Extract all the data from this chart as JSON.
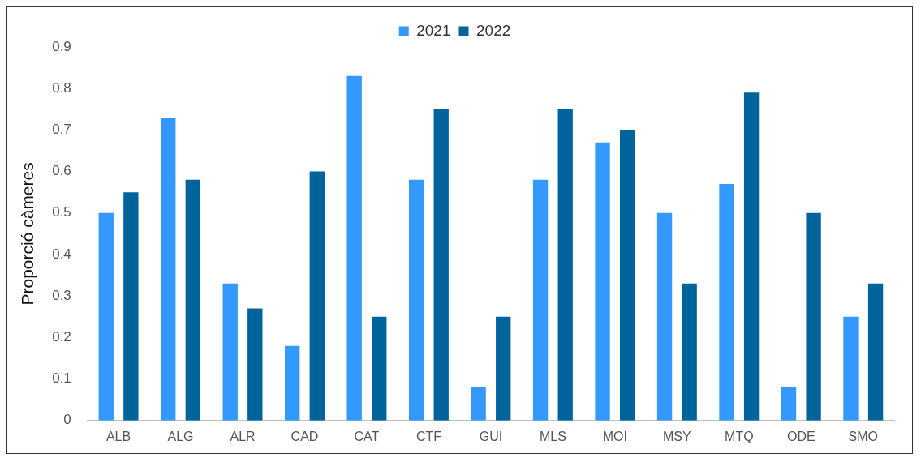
{
  "chart_data": {
    "type": "bar",
    "ylabel": "Proporció càmeres",
    "categories": [
      "ALB",
      "ALG",
      "ALR",
      "CAD",
      "CAT",
      "CTF",
      "GUI",
      "MLS",
      "MOI",
      "MSY",
      "MTQ",
      "ODE",
      "SMO"
    ],
    "series": [
      {
        "name": "2021",
        "color": "#3399ff",
        "values": [
          0.5,
          0.73,
          0.33,
          0.18,
          0.83,
          0.58,
          0.08,
          0.58,
          0.67,
          0.5,
          0.57,
          0.08,
          0.25
        ]
      },
      {
        "name": "2022",
        "color": "#00649c",
        "values": [
          0.55,
          0.58,
          0.27,
          0.6,
          0.25,
          0.75,
          0.25,
          0.75,
          0.7,
          0.33,
          0.79,
          0.5,
          0.33
        ]
      }
    ],
    "ylim": [
      0,
      0.9
    ],
    "yticks": [
      0,
      0.1,
      0.2,
      0.3,
      0.4,
      0.5,
      0.6,
      0.7,
      0.8,
      0.9
    ],
    "grid": false,
    "legend": "top"
  }
}
